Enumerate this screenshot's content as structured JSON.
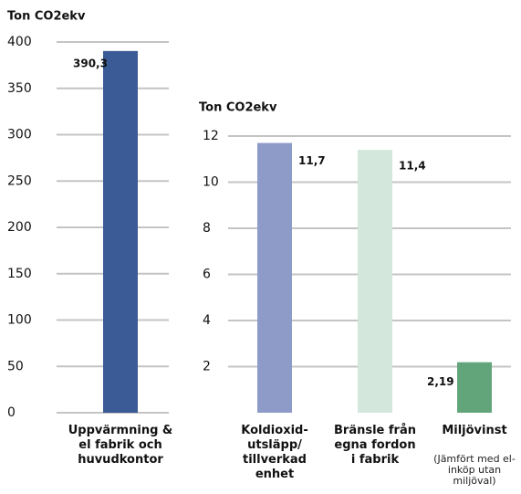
{
  "chart_data": [
    {
      "type": "bar",
      "y_label": "Ton CO2ekv",
      "categories": [
        "Uppvärmning & el fabrik och huvudkontor"
      ],
      "values": [
        390.3
      ],
      "value_labels": [
        "390,3"
      ],
      "colors": [
        "#3b5b97"
      ],
      "ylim": [
        0,
        400
      ],
      "yticks": [
        0,
        50,
        100,
        150,
        200,
        250,
        300,
        350,
        400
      ],
      "grid": true
    },
    {
      "type": "bar",
      "y_label": "Ton CO2ekv",
      "categories": [
        "Koldioxid-utsläpp/ tillverkad enhet",
        "Bränsle från egna fordon i fabrik",
        "Miljövinst"
      ],
      "values": [
        11.7,
        11.4,
        2.19
      ],
      "value_labels": [
        "11,7",
        "11,4",
        "2,19"
      ],
      "colors": [
        "#8e9bc8",
        "#d3e7dc",
        "#62a57b"
      ],
      "annotation": "(Jämfört med el-inköp utan miljöval)",
      "ylim": [
        0,
        12
      ],
      "yticks": [
        2,
        4,
        6,
        8,
        10,
        12
      ],
      "grid": true
    }
  ]
}
